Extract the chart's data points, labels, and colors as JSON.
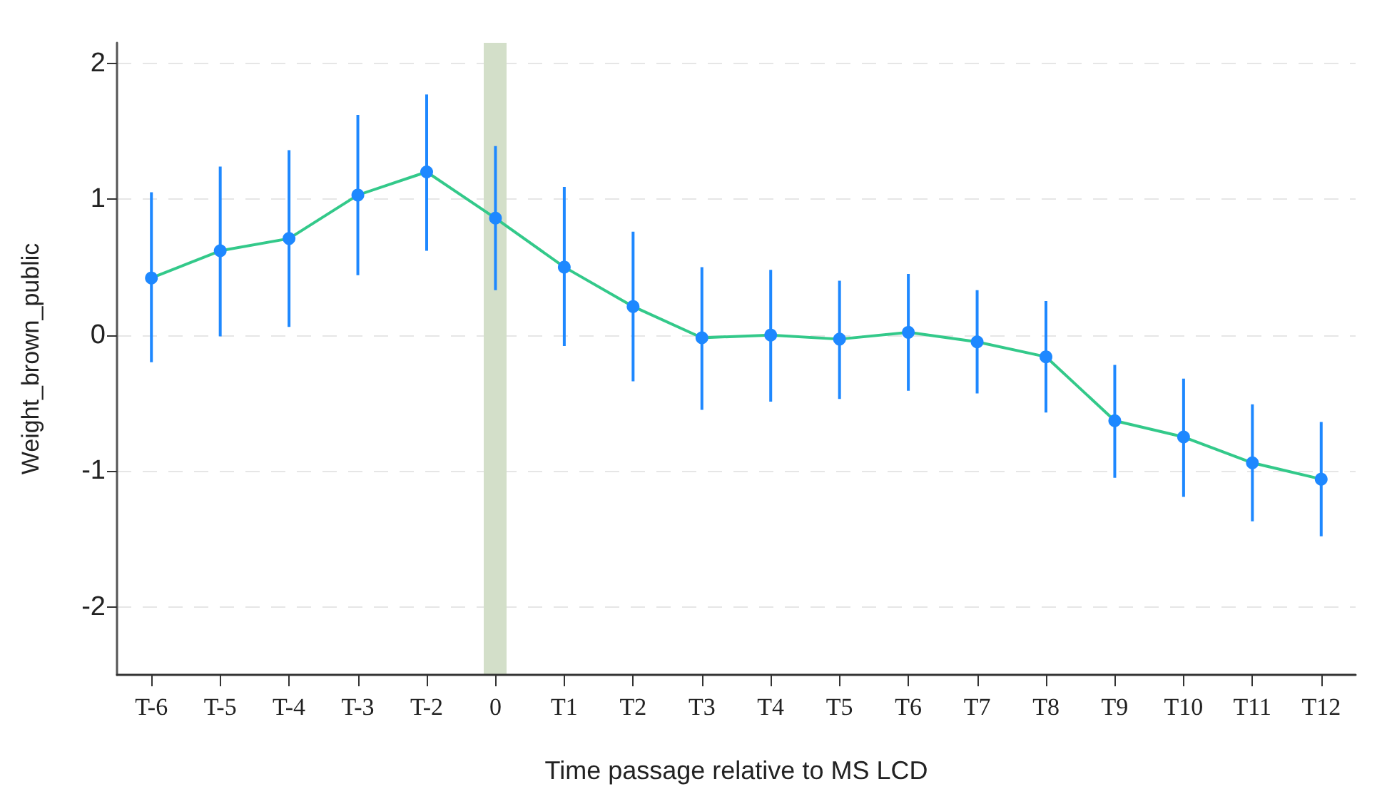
{
  "chart_data": {
    "type": "line",
    "xlabel": "Time passage relative to MS LCD",
    "ylabel": "Weight_brown_public",
    "categories": [
      "T-6",
      "T-5",
      "T-4",
      "T-3",
      "T-2",
      "0",
      "T1",
      "T2",
      "T3",
      "T4",
      "T5",
      "T6",
      "T7",
      "T8",
      "T9",
      "T10",
      "T11",
      "T12"
    ],
    "series": [
      {
        "color": "#33c98a",
        "marker": "none",
        "values": [
          0.42,
          0.62,
          0.71,
          1.03,
          1.2,
          0.86,
          0.5,
          0.21,
          -0.02,
          0.0,
          -0.03,
          0.02,
          -0.05,
          -0.16,
          -0.63,
          -0.75,
          -0.94,
          -1.06
        ]
      },
      {
        "type": "scatter",
        "color": "#1e88ff",
        "marker": "circle",
        "x": [
          "T-6",
          "T-5",
          "T-4",
          "T-3",
          "T-2",
          "0",
          "T1",
          "T2",
          "T3",
          "T4",
          "T5",
          "T6",
          "T7",
          "T8",
          "T9",
          "T10",
          "T11",
          "T12"
        ],
        "values": [
          0.42,
          0.62,
          0.71,
          1.03,
          1.2,
          0.86,
          0.5,
          0.21,
          -0.02,
          0.0,
          -0.03,
          0.02,
          -0.05,
          -0.16,
          -0.63,
          -0.75,
          -0.94,
          -1.06
        ],
        "errors": [
          [
            -0.2,
            1.05
          ],
          [
            -0.01,
            1.24
          ],
          [
            0.06,
            1.36
          ],
          [
            0.44,
            1.62
          ],
          [
            0.62,
            1.77
          ],
          [
            0.33,
            1.39
          ],
          [
            -0.08,
            1.09
          ],
          [
            -0.34,
            0.76
          ],
          [
            -0.55,
            0.5
          ],
          [
            -0.49,
            0.48
          ],
          [
            -0.47,
            0.4
          ],
          [
            -0.41,
            0.45
          ],
          [
            -0.43,
            0.33
          ],
          [
            -0.57,
            0.25
          ],
          [
            -1.05,
            -0.22
          ],
          [
            -1.19,
            -0.32
          ],
          [
            -1.37,
            -0.51
          ],
          [
            -1.48,
            -0.64
          ]
        ]
      }
    ],
    "ref_lines": [
      {
        "axis": "x",
        "value": "0",
        "color": "#d3dfc9"
      }
    ],
    "ylim": [
      -2.5,
      2.15
    ],
    "yticks": [
      -2,
      -1,
      0,
      1,
      2
    ],
    "grid": "y"
  }
}
